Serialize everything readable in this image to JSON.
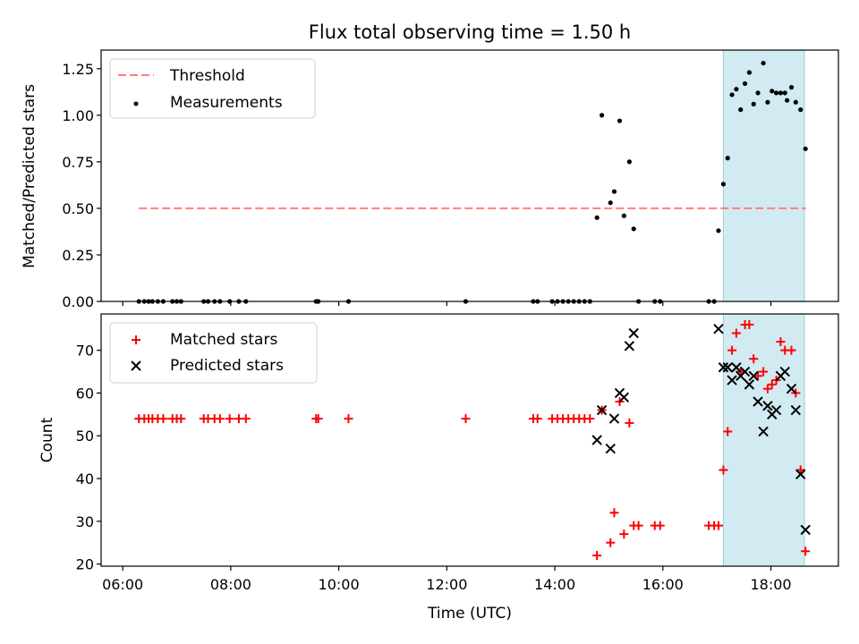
{
  "chart_data": [
    {
      "type": "scatter",
      "title": "Flux total observing time = 1.50 h",
      "xlabel": "",
      "ylabel": "Matched/Predicted stars",
      "xlim": [
        5.6,
        19.25
      ],
      "ylim": [
        0,
        1.35
      ],
      "x_ticks": [
        6,
        8,
        10,
        12,
        14,
        16,
        18
      ],
      "y_ticks": [
        0.0,
        0.25,
        0.5,
        0.75,
        1.0,
        1.25
      ],
      "y_tick_labels": [
        "0.00",
        "0.25",
        "0.50",
        "0.75",
        "1.00",
        "1.25"
      ],
      "highlight_span": {
        "x": [
          17.12,
          18.62
        ],
        "color": "#add8e6"
      },
      "threshold": {
        "name": "Threshold",
        "y": 0.5,
        "x": [
          6.3,
          18.65
        ],
        "color": "#ff7f7f"
      },
      "series": [
        {
          "name": "Measurements",
          "color": "#000000",
          "points": [
            [
              6.3,
              0
            ],
            [
              6.4,
              0
            ],
            [
              6.48,
              0
            ],
            [
              6.55,
              0
            ],
            [
              6.65,
              0
            ],
            [
              6.75,
              0
            ],
            [
              6.92,
              0
            ],
            [
              7.0,
              0
            ],
            [
              7.08,
              0
            ],
            [
              7.5,
              0
            ],
            [
              7.58,
              0
            ],
            [
              7.7,
              0
            ],
            [
              7.8,
              0
            ],
            [
              7.98,
              0
            ],
            [
              8.15,
              0
            ],
            [
              8.28,
              0
            ],
            [
              9.58,
              0
            ],
            [
              9.62,
              0
            ],
            [
              10.18,
              0
            ],
            [
              12.35,
              0
            ],
            [
              13.6,
              0
            ],
            [
              13.68,
              0
            ],
            [
              13.95,
              0
            ],
            [
              14.05,
              0
            ],
            [
              14.15,
              0
            ],
            [
              14.25,
              0
            ],
            [
              14.35,
              0
            ],
            [
              14.45,
              0
            ],
            [
              14.55,
              0
            ],
            [
              14.65,
              0
            ],
            [
              14.78,
              0.45
            ],
            [
              14.87,
              1.0
            ],
            [
              15.03,
              0.53
            ],
            [
              15.1,
              0.59
            ],
            [
              15.2,
              0.97
            ],
            [
              15.28,
              0.46
            ],
            [
              15.38,
              0.75
            ],
            [
              15.46,
              0.39
            ],
            [
              15.55,
              0
            ],
            [
              15.85,
              0
            ],
            [
              15.95,
              0
            ],
            [
              16.85,
              0
            ],
            [
              16.95,
              0
            ],
            [
              17.03,
              0.38
            ],
            [
              17.12,
              0.63
            ],
            [
              17.2,
              0.77
            ],
            [
              17.28,
              1.11
            ],
            [
              17.36,
              1.14
            ],
            [
              17.44,
              1.03
            ],
            [
              17.52,
              1.17
            ],
            [
              17.6,
              1.23
            ],
            [
              17.68,
              1.06
            ],
            [
              17.76,
              1.12
            ],
            [
              17.86,
              1.28
            ],
            [
              17.94,
              1.07
            ],
            [
              18.02,
              1.13
            ],
            [
              18.1,
              1.12
            ],
            [
              18.18,
              1.12
            ],
            [
              18.26,
              1.12
            ],
            [
              18.3,
              1.08
            ],
            [
              18.38,
              1.15
            ],
            [
              18.46,
              1.07
            ],
            [
              18.55,
              1.03
            ],
            [
              18.64,
              0.82
            ]
          ]
        }
      ]
    },
    {
      "type": "scatter",
      "title": "",
      "xlabel": "Time (UTC)",
      "ylabel": "Count",
      "xlim": [
        5.6,
        19.25
      ],
      "ylim": [
        19.5,
        78.5
      ],
      "x_ticks": [
        6,
        8,
        10,
        12,
        14,
        16,
        18
      ],
      "x_tick_labels": [
        "06:00",
        "08:00",
        "10:00",
        "12:00",
        "14:00",
        "16:00",
        "18:00"
      ],
      "y_ticks": [
        20,
        30,
        40,
        50,
        60,
        70
      ],
      "highlight_span": {
        "x": [
          17.12,
          18.62
        ],
        "color": "#add8e6"
      },
      "series": [
        {
          "name": "Matched stars",
          "marker": "plus",
          "color": "#ff0000",
          "points": [
            [
              6.3,
              54
            ],
            [
              6.4,
              54
            ],
            [
              6.48,
              54
            ],
            [
              6.55,
              54
            ],
            [
              6.65,
              54
            ],
            [
              6.75,
              54
            ],
            [
              6.92,
              54
            ],
            [
              7.0,
              54
            ],
            [
              7.08,
              54
            ],
            [
              7.5,
              54
            ],
            [
              7.58,
              54
            ],
            [
              7.7,
              54
            ],
            [
              7.8,
              54
            ],
            [
              7.98,
              54
            ],
            [
              8.15,
              54
            ],
            [
              8.28,
              54
            ],
            [
              9.58,
              54
            ],
            [
              9.62,
              54
            ],
            [
              10.18,
              54
            ],
            [
              12.35,
              54
            ],
            [
              13.6,
              54
            ],
            [
              13.68,
              54
            ],
            [
              13.95,
              54
            ],
            [
              14.05,
              54
            ],
            [
              14.15,
              54
            ],
            [
              14.25,
              54
            ],
            [
              14.35,
              54
            ],
            [
              14.45,
              54
            ],
            [
              14.55,
              54
            ],
            [
              14.65,
              54
            ],
            [
              14.78,
              22
            ],
            [
              14.87,
              56
            ],
            [
              15.03,
              25
            ],
            [
              15.1,
              32
            ],
            [
              15.2,
              58
            ],
            [
              15.28,
              27
            ],
            [
              15.38,
              53
            ],
            [
              15.46,
              29
            ],
            [
              15.55,
              29
            ],
            [
              15.85,
              29
            ],
            [
              15.95,
              29
            ],
            [
              16.85,
              29
            ],
            [
              16.95,
              29
            ],
            [
              17.03,
              29
            ],
            [
              17.12,
              42
            ],
            [
              17.2,
              51
            ],
            [
              17.28,
              70
            ],
            [
              17.36,
              74
            ],
            [
              17.44,
              65
            ],
            [
              17.52,
              76
            ],
            [
              17.6,
              76
            ],
            [
              17.68,
              68
            ],
            [
              17.76,
              64
            ],
            [
              17.86,
              65
            ],
            [
              17.94,
              61
            ],
            [
              18.02,
              62
            ],
            [
              18.1,
              63
            ],
            [
              18.18,
              72
            ],
            [
              18.26,
              70
            ],
            [
              18.38,
              70
            ],
            [
              18.46,
              60
            ],
            [
              18.55,
              42
            ],
            [
              18.64,
              23
            ]
          ]
        },
        {
          "name": "Predicted stars",
          "marker": "x",
          "color": "#000000",
          "points": [
            [
              14.78,
              49
            ],
            [
              14.87,
              56
            ],
            [
              15.03,
              47
            ],
            [
              15.1,
              54
            ],
            [
              15.2,
              60
            ],
            [
              15.28,
              59
            ],
            [
              15.38,
              71
            ],
            [
              15.46,
              74
            ],
            [
              17.03,
              75
            ],
            [
              17.12,
              66
            ],
            [
              17.2,
              66
            ],
            [
              17.28,
              63
            ],
            [
              17.36,
              66
            ],
            [
              17.44,
              64
            ],
            [
              17.52,
              65
            ],
            [
              17.6,
              62
            ],
            [
              17.68,
              64
            ],
            [
              17.76,
              58
            ],
            [
              17.86,
              51
            ],
            [
              17.94,
              57
            ],
            [
              18.02,
              55
            ],
            [
              18.1,
              56
            ],
            [
              18.18,
              64
            ],
            [
              18.26,
              65
            ],
            [
              18.38,
              61
            ],
            [
              18.46,
              56
            ],
            [
              18.55,
              41
            ],
            [
              18.64,
              28
            ]
          ]
        }
      ]
    }
  ]
}
